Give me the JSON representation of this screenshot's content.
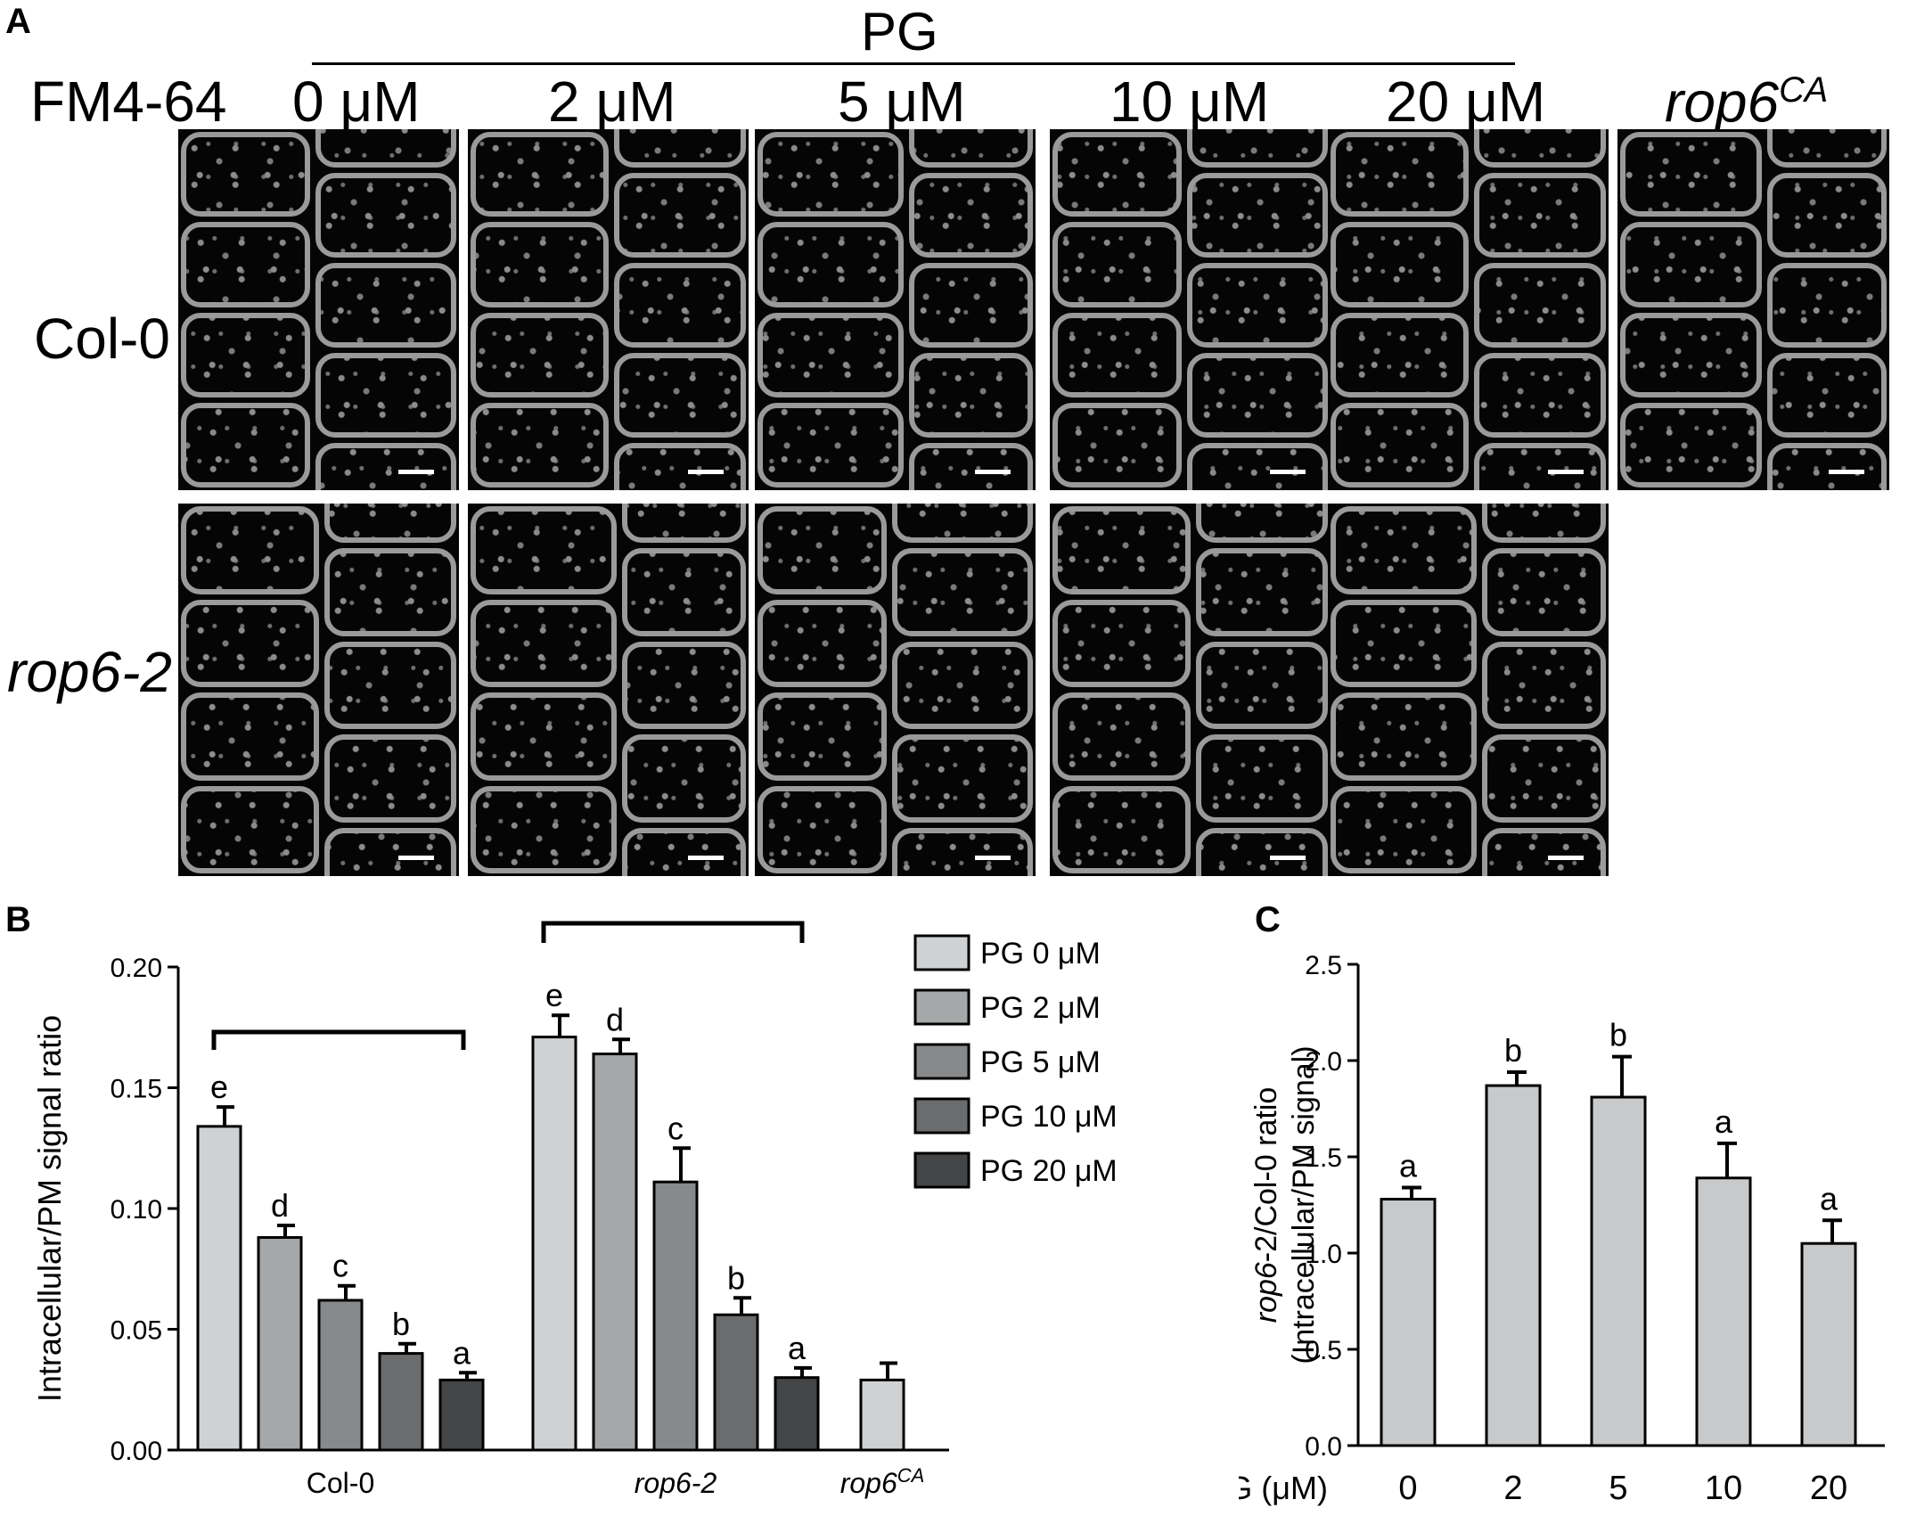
{
  "figure": {
    "panel_a_letter": "A",
    "panel_b_letter": "B",
    "panel_c_letter": "C",
    "pg_header": "PG",
    "stain_label": "FM4-64",
    "concentrations": [
      "0 μM",
      "2 μM",
      "5 μM",
      "10 μM",
      "20 μM"
    ],
    "rop6ca_base": "rop6",
    "rop6ca_sup": "CA",
    "row_col0": "Col-0",
    "row_rop6_base": "rop6",
    "row_rop6_suffix": "-2"
  },
  "chart_data": [
    {
      "type": "bar",
      "panel": "B",
      "ylabel": "Intracellular/PM signal ratio",
      "ylim": [
        0,
        0.2
      ],
      "yticks": [
        "0.00",
        "0.05",
        "0.10",
        "0.15",
        "0.20"
      ],
      "groups": [
        {
          "label": "Col-0",
          "values": [
            0.134,
            0.088,
            0.062,
            0.04,
            0.029
          ],
          "errors": [
            0.008,
            0.005,
            0.006,
            0.004,
            0.003
          ],
          "letters": [
            "e",
            "d",
            "c",
            "b",
            "a"
          ]
        },
        {
          "label_base": "rop6",
          "label_suffix": "-2",
          "values": [
            0.171,
            0.164,
            0.111,
            0.056,
            0.03
          ],
          "errors": [
            0.009,
            0.006,
            0.014,
            0.007,
            0.004
          ],
          "letters": [
            "e",
            "d",
            "c",
            "b",
            "a"
          ]
        },
        {
          "label_base": "rop6",
          "label_sup": "CA",
          "values": [
            0.029
          ],
          "errors": [
            0.007
          ],
          "letters": [
            ""
          ]
        }
      ],
      "legend": [
        "PG 0 μM",
        "PG 2 μM",
        "PG 5 μM",
        "PG 10 μM",
        "PG 20 μM"
      ],
      "colors": [
        "#cfd1d2",
        "#a5a7a9",
        "#87898b",
        "#6a6c6e",
        "#434547"
      ],
      "brackets": [
        {
          "group": 0
        },
        {
          "group": 1
        }
      ]
    },
    {
      "type": "bar",
      "panel": "C",
      "ylabel_base": "rop6",
      "ylabel_suffix": "-2/Col-0 ratio",
      "ylabel_line2": "(Intracellular/PM signal)",
      "xlabel": "PG (μM)",
      "categories": [
        "0",
        "2",
        "5",
        "10",
        "20"
      ],
      "values": [
        1.28,
        1.87,
        1.81,
        1.39,
        1.05
      ],
      "errors": [
        0.06,
        0.07,
        0.21,
        0.18,
        0.12
      ],
      "letters": [
        "a",
        "b",
        "b",
        "a",
        "a"
      ],
      "ylim": [
        0,
        2.5
      ],
      "yticks": [
        "0.0",
        "0.5",
        "1.0",
        "1.5",
        "2.0",
        "2.5"
      ],
      "color": "#c8c9ca"
    }
  ]
}
